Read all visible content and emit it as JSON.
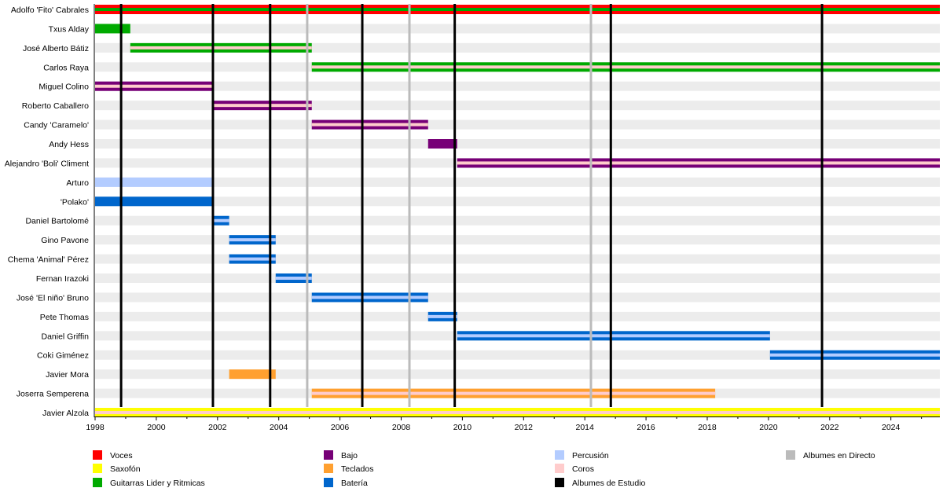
{
  "chart_data": {
    "type": "timeline",
    "xlim": [
      1998,
      2025.6
    ],
    "x_ticks": [
      1998,
      2000,
      2002,
      2004,
      2006,
      2008,
      2010,
      2012,
      2014,
      2016,
      2018,
      2020,
      2022,
      2024
    ],
    "minor_tick_step": 1,
    "roles": {
      "voces": {
        "label": "Voces",
        "color": "#ff0000"
      },
      "saxofon": {
        "label": "Saxofón",
        "color": "#ffff00"
      },
      "guitarras": {
        "label": "Guitarras Lider y Ritmicas",
        "color": "#00aa00"
      },
      "bajo": {
        "label": "Bajo",
        "color": "#770077"
      },
      "teclados": {
        "label": "Teclados",
        "color": "#ffa030"
      },
      "bateria": {
        "label": "Batería",
        "color": "#0066cc"
      },
      "percusion": {
        "label": "Percusión",
        "color": "#b3ccff"
      },
      "coros": {
        "label": "Coros",
        "color": "#ffcccc"
      },
      "estudio": {
        "label": "Albumes de Estudio",
        "color": "#000000"
      },
      "directo": {
        "label": "Albumes en Directo",
        "color": "#bbbbbb"
      }
    },
    "legend": [
      [
        "voces",
        "saxofon",
        "guitarras"
      ],
      [
        "bajo",
        "teclados",
        "bateria"
      ],
      [
        "percusion",
        "coros",
        "estudio"
      ],
      [
        "directo"
      ]
    ],
    "members": [
      {
        "name": "Adolfo 'Fito' Cabrales",
        "periods": [
          {
            "from": 1998,
            "to": 2025.6,
            "role": "voces",
            "inner": "guitarras"
          }
        ]
      },
      {
        "name": "Txus Alday",
        "periods": [
          {
            "from": 1998,
            "to": 1999.15,
            "role": "guitarras"
          }
        ]
      },
      {
        "name": "José Alberto Bátiz",
        "periods": [
          {
            "from": 1999.15,
            "to": 2005.08,
            "role": "guitarras",
            "inner": "coros"
          }
        ]
      },
      {
        "name": "Carlos Raya",
        "periods": [
          {
            "from": 2005.08,
            "to": 2025.6,
            "role": "guitarras",
            "inner": "coros"
          }
        ]
      },
      {
        "name": "Miguel Colino",
        "periods": [
          {
            "from": 1998,
            "to": 2001.87,
            "role": "bajo",
            "inner": "coros"
          }
        ]
      },
      {
        "name": "Roberto Caballero",
        "periods": [
          {
            "from": 2001.87,
            "to": 2005.08,
            "role": "bajo",
            "inner": "coros"
          }
        ]
      },
      {
        "name": "Candy 'Caramelo'",
        "periods": [
          {
            "from": 2005.08,
            "to": 2008.88,
            "role": "bajo",
            "inner": "coros"
          }
        ]
      },
      {
        "name": "Andy Hess",
        "periods": [
          {
            "from": 2008.88,
            "to": 2009.83,
            "role": "bajo"
          }
        ]
      },
      {
        "name": "Alejandro 'Boli' Climent",
        "periods": [
          {
            "from": 2009.83,
            "to": 2025.6,
            "role": "bajo",
            "inner": "coros"
          }
        ]
      },
      {
        "name": "Arturo",
        "periods": [
          {
            "from": 1998,
            "to": 2001.87,
            "role": "percusion"
          }
        ]
      },
      {
        "name": "'Polako'",
        "periods": [
          {
            "from": 1998,
            "to": 2001.87,
            "role": "bateria"
          }
        ]
      },
      {
        "name": "Daniel Bartolomé",
        "periods": [
          {
            "from": 2001.87,
            "to": 2002.38,
            "role": "bateria",
            "inner": "percusion"
          }
        ]
      },
      {
        "name": "Gino Pavone",
        "periods": [
          {
            "from": 2002.38,
            "to": 2003.9,
            "role": "bateria",
            "inner": "percusion"
          }
        ]
      },
      {
        "name": "Chema 'Animal' Pérez",
        "periods": [
          {
            "from": 2002.38,
            "to": 2003.9,
            "role": "bateria",
            "inner": "percusion"
          }
        ]
      },
      {
        "name": "Fernan Irazoki",
        "periods": [
          {
            "from": 2003.9,
            "to": 2005.08,
            "role": "bateria",
            "inner": "percusion"
          }
        ]
      },
      {
        "name": "José 'El niño' Bruno",
        "periods": [
          {
            "from": 2005.08,
            "to": 2008.88,
            "role": "bateria",
            "inner": "percusion"
          }
        ]
      },
      {
        "name": "Pete Thomas",
        "periods": [
          {
            "from": 2008.88,
            "to": 2009.83,
            "role": "bateria",
            "inner": "percusion"
          }
        ]
      },
      {
        "name": "Daniel Griffin",
        "periods": [
          {
            "from": 2009.83,
            "to": 2020.05,
            "role": "bateria",
            "inner": "percusion"
          }
        ]
      },
      {
        "name": "Coki Giménez",
        "periods": [
          {
            "from": 2020.05,
            "to": 2025.6,
            "role": "bateria",
            "inner": "percusion"
          }
        ]
      },
      {
        "name": "Javier Mora",
        "periods": [
          {
            "from": 2002.38,
            "to": 2003.9,
            "role": "teclados"
          }
        ]
      },
      {
        "name": "Joserra Semperena",
        "periods": [
          {
            "from": 2005.08,
            "to": 2018.26,
            "role": "teclados",
            "inner": "coros"
          }
        ]
      },
      {
        "name": "Javier Alzola",
        "periods": [
          {
            "from": 1998,
            "to": 2025.6,
            "role": "saxofon",
            "inner": "coros"
          }
        ]
      }
    ],
    "studio_albums": [
      1998.85,
      2001.85,
      2003.72,
      2006.73,
      2009.75,
      2014.85,
      2021.75
    ],
    "live_albums": [
      2004.93,
      2008.27,
      2014.2
    ]
  }
}
